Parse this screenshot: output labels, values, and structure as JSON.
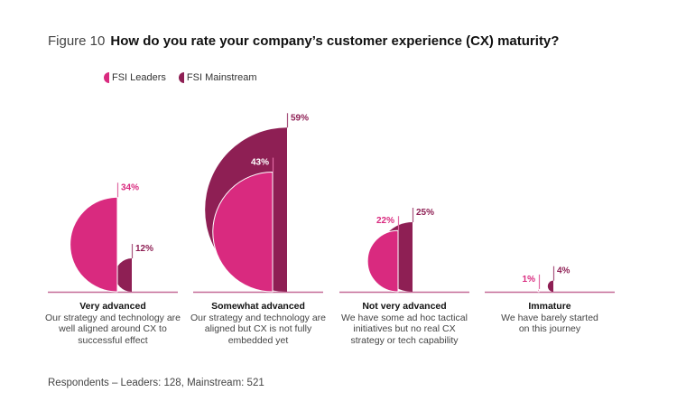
{
  "figure_label": "Figure 10",
  "chart_data": {
    "type": "bar",
    "title": "How do you rate your company’s customer experience (CX) maturity?",
    "categories": [
      "Very advanced",
      "Somewhat advanced",
      "Not very advanced",
      "Immature"
    ],
    "descriptions": [
      "Our strategy and technology are well aligned around CX to successful effect",
      "Our strategy and technology are aligned but CX is not fully embedded yet",
      "We have some ad hoc tactical initiatives but no real CX strategy or tech capability",
      "We have barely started on this journey"
    ],
    "series": [
      {
        "name": "FSI Leaders",
        "color": "#d92a7f",
        "values": [
          34,
          43,
          22,
          1
        ],
        "labels": [
          "34%",
          "43%",
          "22%",
          "1%"
        ]
      },
      {
        "name": "FSI Mainstream",
        "color": "#8e1f54",
        "values": [
          12,
          59,
          25,
          4
        ],
        "labels": [
          "12%",
          "59%",
          "25%",
          "4%"
        ]
      }
    ],
    "unit": "%",
    "legend_position": "top-left",
    "grid": false
  },
  "footnote": "Respondents – Leaders: 128, Mainstream: 521"
}
